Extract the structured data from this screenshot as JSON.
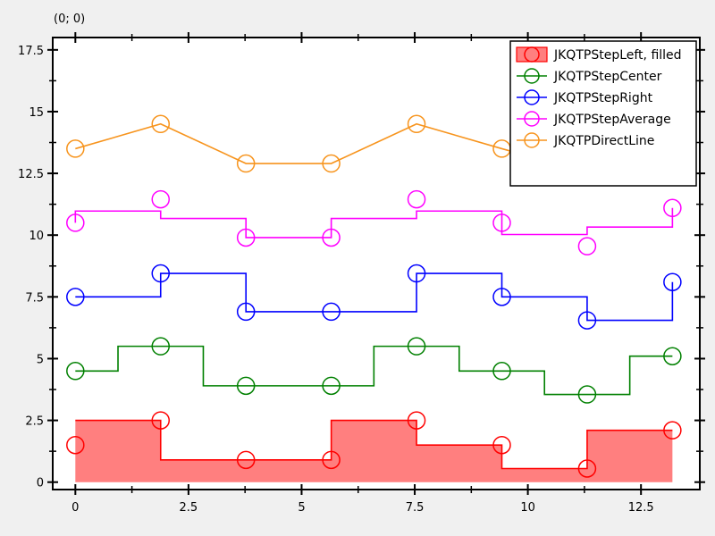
{
  "coord_readout": "(0; 0)",
  "chart_data": {
    "type": "line",
    "title": "",
    "xlabel": "",
    "ylabel": "",
    "xlim": [
      -0.5,
      13.8
    ],
    "ylim": [
      -0.3,
      18
    ],
    "xticks": [
      0,
      2.5,
      5,
      7.5,
      10,
      12.5
    ],
    "xtick_labels": [
      "0",
      "2.5",
      "5",
      "7.5",
      "10",
      "12.5"
    ],
    "yticks": [
      0,
      2.5,
      5,
      7.5,
      10,
      12.5,
      15,
      17.5
    ],
    "ytick_labels": [
      "0",
      "2.5",
      "5",
      "7.5",
      "10",
      "12.5",
      "15",
      "17.5"
    ],
    "grid": false,
    "legend_position": "top-right",
    "x": [
      0,
      1.885,
      3.77,
      5.655,
      7.54,
      9.425,
      11.31,
      13.195
    ],
    "series": [
      {
        "name": "JKQTPStepLeft, filled",
        "step": "left",
        "filled": true,
        "color": "#ff0000",
        "fill": "#ff7f7f",
        "values": [
          1.5,
          2.5,
          0.9,
          0.9,
          2.5,
          1.5,
          0.55,
          2.1
        ]
      },
      {
        "name": "JKQTPStepCenter",
        "step": "center",
        "filled": false,
        "color": "#008000",
        "values": [
          4.5,
          5.5,
          3.9,
          3.9,
          5.5,
          4.5,
          3.55,
          5.1
        ]
      },
      {
        "name": "JKQTPStepRight",
        "step": "right",
        "filled": false,
        "color": "#0000ff",
        "values": [
          7.5,
          8.45,
          6.9,
          6.9,
          8.45,
          7.5,
          6.55,
          8.1
        ]
      },
      {
        "name": "JKQTPStepAverage",
        "step": "average",
        "filled": false,
        "color": "#ff00ff",
        "values": [
          10.5,
          11.45,
          9.9,
          9.9,
          11.45,
          10.5,
          9.55,
          11.1
        ]
      },
      {
        "name": "JKQTPDirectLine",
        "step": "direct",
        "filled": false,
        "color": "#f7941d",
        "values": [
          13.5,
          14.5,
          12.9,
          12.9,
          14.5,
          13.5,
          12.55,
          14.1
        ]
      }
    ]
  }
}
